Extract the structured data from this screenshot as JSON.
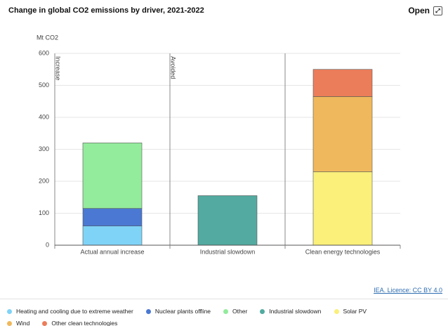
{
  "button": "Open",
  "chart_data": {
    "type": "bar",
    "stacked": true,
    "title": "Change in global CO2 emissions by driver, 2021-2022",
    "y_label": "Mt CO2",
    "source": "IEA. Licence: CC BY 4.0",
    "annotations": [
      "Increase",
      "Avoided"
    ],
    "categories": [
      "Actual annual increase",
      "Industrial slowdown",
      "Clean energy technologies"
    ],
    "series": [
      {
        "name": "Heating and cooling due to extreme weather",
        "color": "#7fd3f7",
        "values": [
          60,
          null,
          null
        ]
      },
      {
        "name": "Nuclear plants offline",
        "color": "#4a78d2",
        "values": [
          55,
          null,
          null
        ]
      },
      {
        "name": "Other",
        "color": "#93eb9c",
        "values": [
          205,
          null,
          null
        ]
      },
      {
        "name": "Industrial slowdown",
        "color": "#52aaa0",
        "values": [
          null,
          155,
          null
        ]
      },
      {
        "name": "Solar PV",
        "color": "#faf07a",
        "values": [
          null,
          null,
          230
        ]
      },
      {
        "name": "Wind",
        "color": "#f0b85c",
        "values": [
          null,
          null,
          235
        ]
      },
      {
        "name": "Other clean technologies",
        "color": "#ec7d5a",
        "values": [
          null,
          null,
          85
        ]
      }
    ],
    "ylim": [
      0,
      600
    ],
    "yticks": [
      0,
      100,
      200,
      300,
      400,
      500,
      600
    ],
    "grid": true
  }
}
